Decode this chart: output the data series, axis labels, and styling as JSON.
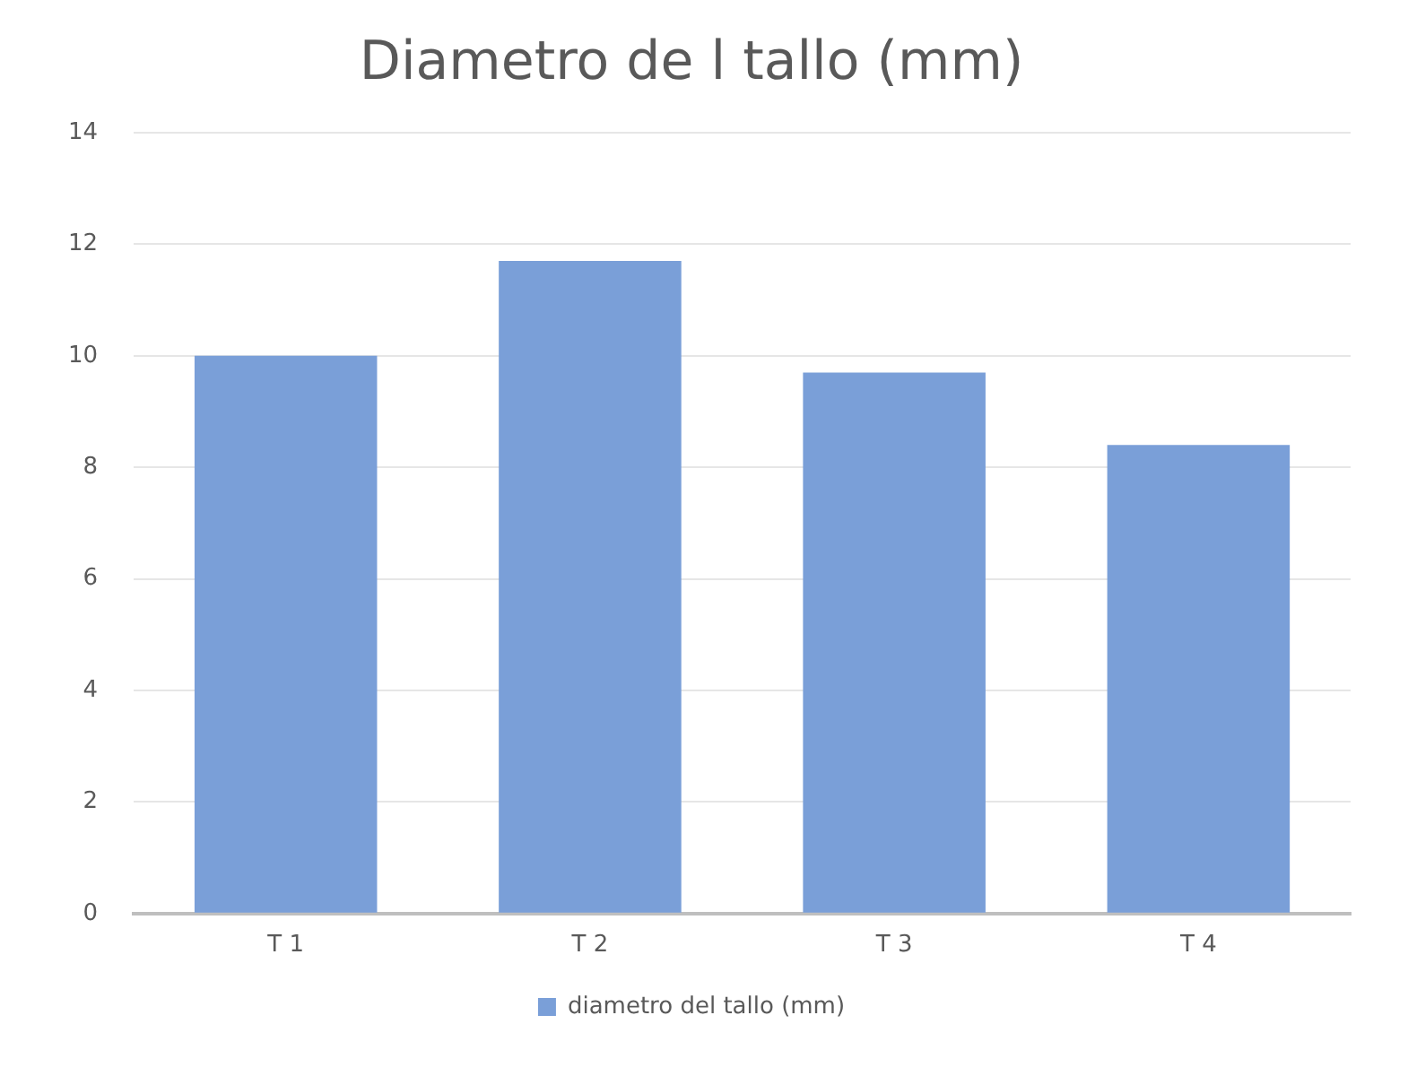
{
  "chart_data": {
    "type": "bar",
    "title": "Diametro de l tallo (mm)",
    "categories": [
      "T 1",
      "T 2",
      "T 3",
      "T 4"
    ],
    "series": [
      {
        "name": "diametro del tallo (mm)",
        "color": "#7a9fd8",
        "values": [
          10,
          11.7,
          9.7,
          8.4
        ]
      }
    ],
    "ylim": [
      0,
      14
    ],
    "yticks": [
      0,
      2,
      4,
      6,
      8,
      10,
      12,
      14
    ],
    "grid": "y",
    "legend": "bottom"
  }
}
